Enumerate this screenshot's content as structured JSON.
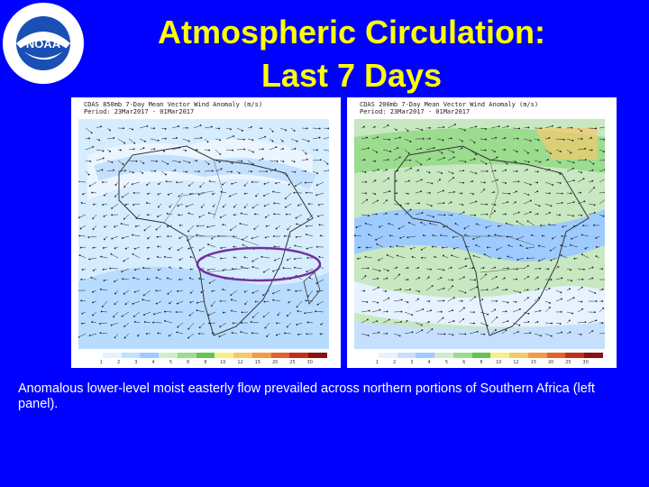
{
  "logo": {
    "text": "NATIONAL OCEANIC AND ATMOSPHERIC ADMINISTRATION · U.S. DEPARTMENT OF COMMERCE",
    "abbr": "NOAA"
  },
  "title": {
    "line1": "Atmospheric Circulation:",
    "line2": "Last 7 Days"
  },
  "panels": [
    {
      "header": "CDAS 850mb 7-Day Mean Vector Wind Anomaly (m/s)",
      "period": "Period: 23Mar2017 - 01Mar2017"
    },
    {
      "header": "CDAS 200mb 7-Day Mean Vector Wind Anomaly (m/s)",
      "period": "Period: 23Mar2017 - 01Mar2017"
    }
  ],
  "colorbar": {
    "labels": [
      "1",
      "2",
      "3",
      "4",
      "5",
      "6",
      "8",
      "10",
      "12",
      "15",
      "20",
      "25",
      "30"
    ],
    "colors": [
      "#ffffff",
      "#e6f2ff",
      "#c5e0ff",
      "#9ecbff",
      "#cdeecd",
      "#9bdc8f",
      "#63c451",
      "#f4f08a",
      "#f5c96a",
      "#f29a45",
      "#e2612c",
      "#c0301f",
      "#8c1111"
    ]
  },
  "caption": "Anomalous lower-level moist easterly flow prevailed across northern portions of Southern Africa (left panel)."
}
